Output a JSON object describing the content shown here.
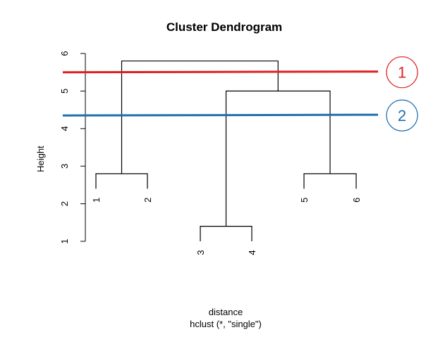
{
  "chart_data": {
    "type": "dendrogram",
    "title": "Cluster Dendrogram",
    "ylabel": "Height",
    "xlabel": "distance",
    "sublabel": "hclust (*, \"single\")",
    "ylim": [
      1,
      6
    ],
    "yticks": [
      "1",
      "2",
      "3",
      "4",
      "5",
      "6"
    ],
    "leaves": [
      {
        "label": "1",
        "height": 2.4
      },
      {
        "label": "2",
        "height": 2.4
      },
      {
        "label": "3",
        "height": 1.0
      },
      {
        "label": "4",
        "height": 1.0
      },
      {
        "label": "5",
        "height": 2.4
      },
      {
        "label": "6",
        "height": 2.4
      }
    ],
    "merges": [
      {
        "left": "leaf:3",
        "right": "leaf:4",
        "height": 1.4
      },
      {
        "left": "leaf:1",
        "right": "leaf:2",
        "height": 2.8
      },
      {
        "left": "leaf:5",
        "right": "leaf:6",
        "height": 2.8
      },
      {
        "left": "node:0",
        "right": "node:2",
        "height": 5.0
      },
      {
        "left": "node:1",
        "right": "node:3",
        "height": 5.8
      }
    ],
    "cut_lines": [
      {
        "label": "1",
        "height": 5.5,
        "color": "#e02020"
      },
      {
        "label": "2",
        "height": 4.35,
        "color": "#1f6fae"
      }
    ]
  }
}
